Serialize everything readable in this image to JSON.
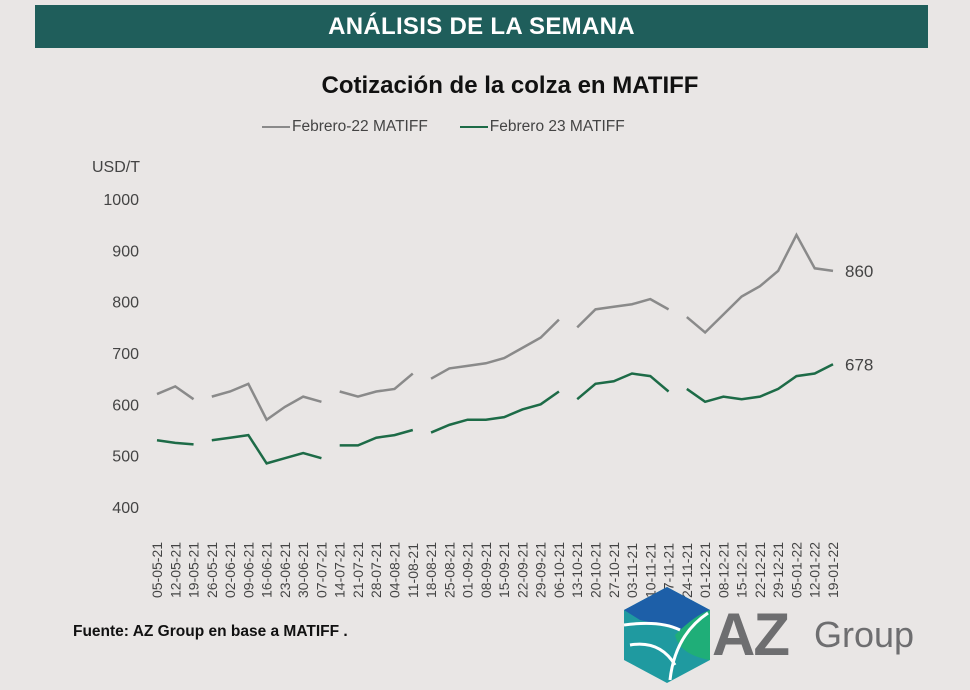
{
  "banner": "ANÁLISIS DE LA SEMANA",
  "source": "Fuente: AZ Group en base a MATIFF .",
  "logo": {
    "brand": "AZ",
    "suffix": "Group"
  },
  "colors": {
    "banner": "#1f5e5b",
    "gray_series": "#8a8a8a",
    "green_series": "#1d6b47"
  },
  "chart_data": {
    "type": "line",
    "title": "Cotización de la colza en MATIFF",
    "ylabel": "USD/T",
    "ylim": [
      400,
      1000
    ],
    "yticks": [
      400,
      500,
      600,
      700,
      800,
      900,
      1000
    ],
    "grid": false,
    "legend": "top",
    "categories": [
      "05-05-21",
      "12-05-21",
      "19-05-21",
      "26-05-21",
      "02-06-21",
      "09-06-21",
      "16-06-21",
      "23-06-21",
      "30-06-21",
      "07-07-21",
      "14-07-21",
      "21-07-21",
      "28-07-21",
      "04-08-21",
      "11-08-21",
      "18-08-21",
      "25-08-21",
      "01-09-21",
      "08-09-21",
      "15-09-21",
      "22-09-21",
      "29-09-21",
      "06-10-21",
      "13-10-21",
      "20-10-21",
      "27-10-21",
      "03-11-21",
      "10-11-21",
      "17-11-21",
      "24-11-21",
      "01-12-21",
      "08-12-21",
      "15-12-21",
      "22-12-21",
      "29-12-21",
      "05-01-22",
      "12-01-22",
      "19-01-22"
    ],
    "gaps_after": [
      2,
      9,
      14,
      22,
      28
    ],
    "series": [
      {
        "name": "Febrero-22 MATIFF",
        "color": "#8a8a8a",
        "end_label": "860",
        "values": [
          620,
          635,
          610,
          615,
          625,
          640,
          570,
          595,
          615,
          605,
          625,
          615,
          625,
          630,
          660,
          650,
          670,
          675,
          680,
          690,
          710,
          730,
          765,
          750,
          785,
          790,
          795,
          805,
          785,
          770,
          740,
          775,
          810,
          830,
          860,
          930,
          865,
          860
        ]
      },
      {
        "name": "Febrero 23 MATIFF",
        "color": "#1d6b47",
        "end_label": "678",
        "values": [
          530,
          525,
          522,
          530,
          535,
          540,
          485,
          495,
          505,
          495,
          520,
          520,
          535,
          540,
          550,
          545,
          560,
          570,
          570,
          575,
          590,
          600,
          625,
          610,
          640,
          645,
          660,
          655,
          625,
          630,
          605,
          615,
          610,
          615,
          630,
          655,
          660,
          678
        ]
      }
    ]
  }
}
